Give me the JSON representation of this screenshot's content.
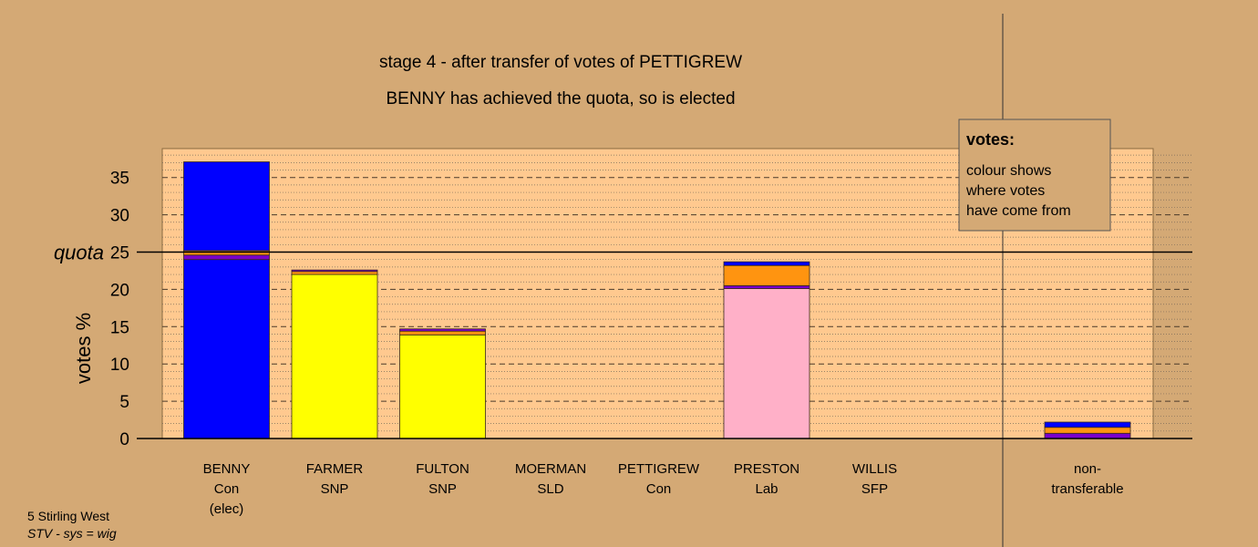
{
  "chart_data": {
    "type": "bar",
    "stacked": true,
    "title": "stage 4 - after transfer of votes of PETTIGREW",
    "subtitle": "BENNY has achieved the quota, so is elected",
    "ylabel": "votes %",
    "ylim": [
      0,
      38
    ],
    "yticks": [
      0,
      5,
      10,
      15,
      20,
      25,
      30,
      35
    ],
    "quota": 25,
    "quota_label": "quota",
    "categories": [
      {
        "name": "BENNY",
        "party": "Con",
        "note": "(elec)"
      },
      {
        "name": "FARMER",
        "party": "SNP",
        "note": ""
      },
      {
        "name": "FULTON",
        "party": "SNP",
        "note": ""
      },
      {
        "name": "MOERMAN",
        "party": "SLD",
        "note": ""
      },
      {
        "name": "PETTIGREW",
        "party": "Con",
        "note": ""
      },
      {
        "name": "PRESTON",
        "party": "Lab",
        "note": ""
      },
      {
        "name": "WILLIS",
        "party": "SFP",
        "note": ""
      }
    ],
    "nontransferable": {
      "line1": "non-",
      "line2": "transferable",
      "segments": [
        {
          "color": "#7a00cc",
          "value": 0.7
        },
        {
          "color": "#ff9410",
          "value": 0.8
        },
        {
          "color": "#0000ff",
          "value": 0.7
        }
      ]
    },
    "bars": [
      {
        "segments": [
          {
            "color": "#0000ff",
            "value": 24.0
          },
          {
            "color": "#7a00cc",
            "value": 0.6
          },
          {
            "color": "#ff9410",
            "value": 0.6
          },
          {
            "color": "#0000ff",
            "value": 11.9
          }
        ]
      },
      {
        "segments": [
          {
            "color": "#ffff00",
            "value": 22.0
          },
          {
            "color": "#ff9410",
            "value": 0.4
          },
          {
            "color": "#7a00cc",
            "value": 0.2
          }
        ]
      },
      {
        "segments": [
          {
            "color": "#ffff00",
            "value": 13.9
          },
          {
            "color": "#ff9410",
            "value": 0.5
          },
          {
            "color": "#7a00cc",
            "value": 0.3
          }
        ]
      },
      {
        "segments": []
      },
      {
        "segments": []
      },
      {
        "segments": [
          {
            "color": "#ffb0c8",
            "value": 20.1
          },
          {
            "color": "#7a00cc",
            "value": 0.4
          },
          {
            "color": "#ff9410",
            "value": 2.7
          },
          {
            "color": "#0000ff",
            "value": 0.5
          }
        ]
      },
      {
        "segments": []
      }
    ],
    "legend": {
      "title": "votes:",
      "lines": [
        "colour shows",
        "where votes",
        "have come from"
      ]
    },
    "grid": true
  },
  "footnote": {
    "line1": "5 Stirling West",
    "line2": "STV - sys = wig"
  },
  "colors": {
    "background": "#d4a975",
    "plot_background": "#ffc98f"
  }
}
